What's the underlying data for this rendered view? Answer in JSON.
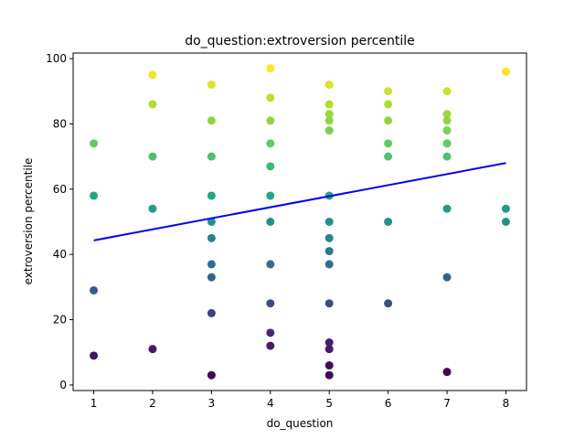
{
  "chart_data": {
    "type": "scatter",
    "title": "do_question:extroversion percentile",
    "xlabel": "do_question",
    "ylabel": "extroversion percentile",
    "xlim": [
      0.65,
      8.35
    ],
    "ylim": [
      -1.7,
      101.7
    ],
    "xticks": [
      1,
      2,
      3,
      4,
      5,
      6,
      7,
      8
    ],
    "yticks": [
      0,
      20,
      40,
      60,
      80,
      100
    ],
    "grid": false,
    "colormap": "viridis",
    "points": [
      {
        "x": 1,
        "y": 74
      },
      {
        "x": 1,
        "y": 58
      },
      {
        "x": 1,
        "y": 29
      },
      {
        "x": 1,
        "y": 9
      },
      {
        "x": 2,
        "y": 95
      },
      {
        "x": 2,
        "y": 86
      },
      {
        "x": 2,
        "y": 70
      },
      {
        "x": 2,
        "y": 54
      },
      {
        "x": 2,
        "y": 11
      },
      {
        "x": 3,
        "y": 92
      },
      {
        "x": 3,
        "y": 81
      },
      {
        "x": 3,
        "y": 70
      },
      {
        "x": 3,
        "y": 58
      },
      {
        "x": 3,
        "y": 50
      },
      {
        "x": 3,
        "y": 45
      },
      {
        "x": 3,
        "y": 37
      },
      {
        "x": 3,
        "y": 33
      },
      {
        "x": 3,
        "y": 22
      },
      {
        "x": 3,
        "y": 3
      },
      {
        "x": 4,
        "y": 97
      },
      {
        "x": 4,
        "y": 88
      },
      {
        "x": 4,
        "y": 81
      },
      {
        "x": 4,
        "y": 74
      },
      {
        "x": 4,
        "y": 67
      },
      {
        "x": 4,
        "y": 58
      },
      {
        "x": 4,
        "y": 50
      },
      {
        "x": 4,
        "y": 37
      },
      {
        "x": 4,
        "y": 25
      },
      {
        "x": 4,
        "y": 16
      },
      {
        "x": 4,
        "y": 12
      },
      {
        "x": 5,
        "y": 92
      },
      {
        "x": 5,
        "y": 86
      },
      {
        "x": 5,
        "y": 83
      },
      {
        "x": 5,
        "y": 81
      },
      {
        "x": 5,
        "y": 78
      },
      {
        "x": 5,
        "y": 58
      },
      {
        "x": 5,
        "y": 50
      },
      {
        "x": 5,
        "y": 45
      },
      {
        "x": 5,
        "y": 41
      },
      {
        "x": 5,
        "y": 37
      },
      {
        "x": 5,
        "y": 25
      },
      {
        "x": 5,
        "y": 13
      },
      {
        "x": 5,
        "y": 11
      },
      {
        "x": 5,
        "y": 6
      },
      {
        "x": 5,
        "y": 3
      },
      {
        "x": 6,
        "y": 90
      },
      {
        "x": 6,
        "y": 86
      },
      {
        "x": 6,
        "y": 81
      },
      {
        "x": 6,
        "y": 74
      },
      {
        "x": 6,
        "y": 70
      },
      {
        "x": 6,
        "y": 50
      },
      {
        "x": 6,
        "y": 25
      },
      {
        "x": 7,
        "y": 90
      },
      {
        "x": 7,
        "y": 83
      },
      {
        "x": 7,
        "y": 81
      },
      {
        "x": 7,
        "y": 78
      },
      {
        "x": 7,
        "y": 74
      },
      {
        "x": 7,
        "y": 70
      },
      {
        "x": 7,
        "y": 54
      },
      {
        "x": 7,
        "y": 33
      },
      {
        "x": 7,
        "y": 4
      },
      {
        "x": 8,
        "y": 96
      },
      {
        "x": 8,
        "y": 54
      },
      {
        "x": 8,
        "y": 50
      }
    ],
    "trendline": {
      "x": [
        1,
        8
      ],
      "y": [
        44.3,
        68
      ],
      "color": "#0000ff"
    }
  }
}
